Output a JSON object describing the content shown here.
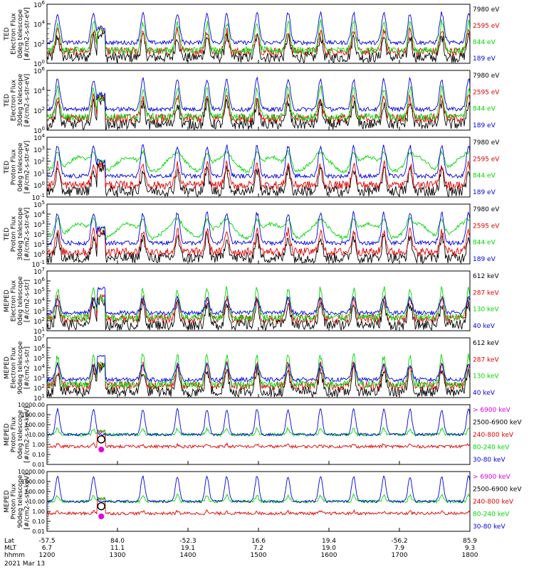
{
  "colors": {
    "black": "#000000",
    "red": "#e00000",
    "green": "#00d800",
    "blue": "#0000e0",
    "magenta": "#e000e0"
  },
  "chart_data": [
    {
      "type": "line",
      "ylabel": [
        "TED",
        "Electron Flux",
        "0deg telescope",
        "[#/cm2-s-str-eV]"
      ],
      "yscale": "log",
      "ylim": [
        1,
        1000000
      ],
      "yticks": [
        "10^0",
        "10^2",
        "10^4",
        "10^6"
      ],
      "legend": [
        {
          "label": "7980 eV",
          "color": "#000000"
        },
        {
          "label": "2595 eV",
          "color": "#e00000"
        },
        {
          "label": "844 eV",
          "color": "#00d800"
        },
        {
          "label": "189 eV",
          "color": "#0000e0"
        }
      ]
    },
    {
      "type": "line",
      "ylabel": [
        "TED",
        "Electron Flux",
        "30deg telescope",
        "[#/cm2-s-str-eV]"
      ],
      "yscale": "log",
      "ylim": [
        1,
        1000000
      ],
      "yticks": [
        "10^0",
        "10^2",
        "10^4",
        "10^6"
      ],
      "legend": [
        {
          "label": "7980 eV",
          "color": "#000000"
        },
        {
          "label": "2595 eV",
          "color": "#e00000"
        },
        {
          "label": "844 eV",
          "color": "#00d800"
        },
        {
          "label": "189 eV",
          "color": "#0000e0"
        }
      ]
    },
    {
      "type": "line",
      "ylabel": [
        "TED",
        "Proton Flux",
        "0deg telescope",
        "[#/cm2-s-str-eV]"
      ],
      "yscale": "log",
      "ylim": [
        0.1,
        10000
      ],
      "yticks": [
        "10^-1",
        "10^0",
        "10^1",
        "10^2",
        "10^3",
        "10^4"
      ],
      "legend": [
        {
          "label": "7980 eV",
          "color": "#000000"
        },
        {
          "label": "2595 eV",
          "color": "#e00000"
        },
        {
          "label": "844 eV",
          "color": "#00d800"
        },
        {
          "label": "189 eV",
          "color": "#0000e0"
        }
      ]
    },
    {
      "type": "line",
      "ylabel": [
        "TED",
        "Proton Flux",
        "30deg telescope",
        "[#/cm2-s-str-eV]"
      ],
      "yscale": "log",
      "ylim": [
        0.1,
        100000
      ],
      "yticks": [
        "10^-1",
        "10^0",
        "10^1",
        "10^2",
        "10^3",
        "10^4",
        "10^5"
      ],
      "legend": [
        {
          "label": "7980 eV",
          "color": "#000000"
        },
        {
          "label": "2595 eV",
          "color": "#e00000"
        },
        {
          "label": "844 eV",
          "color": "#00d800"
        },
        {
          "label": "189 eV",
          "color": "#0000e0"
        }
      ]
    },
    {
      "type": "line",
      "ylabel": [
        "MEPED",
        "Electron Flux",
        "0deg telescope",
        "[#/cm2-s-str]"
      ],
      "yscale": "log",
      "ylim": [
        10,
        10000000
      ],
      "yticks": [
        "10^1",
        "10^2",
        "10^3",
        "10^4",
        "10^5",
        "10^6",
        "10^7"
      ],
      "legend": [
        {
          "label": "612 keV",
          "color": "#000000"
        },
        {
          "label": "287 keV",
          "color": "#e00000"
        },
        {
          "label": "130 keV",
          "color": "#00d800"
        },
        {
          "label": "40 keV",
          "color": "#0000e0"
        }
      ]
    },
    {
      "type": "line",
      "ylabel": [
        "MEPED",
        "Electron Flux",
        "90deg telescope",
        "[#/cm2-s-str]"
      ],
      "yscale": "log",
      "ylim": [
        10,
        10000000
      ],
      "yticks": [
        "10^1",
        "10^2",
        "10^3",
        "10^4",
        "10^5",
        "10^6",
        "10^7"
      ],
      "legend": [
        {
          "label": "612 keV",
          "color": "#000000"
        },
        {
          "label": "287 keV",
          "color": "#e00000"
        },
        {
          "label": "130 keV",
          "color": "#00d800"
        },
        {
          "label": "40 keV",
          "color": "#0000e0"
        }
      ]
    },
    {
      "type": "line",
      "ylabel": [
        "MEPED",
        "Proton Flux",
        "0deg telescope",
        "[#/cm2-s-str-keV]"
      ],
      "yscale": "log",
      "ylim": [
        0.01,
        10000
      ],
      "yticks": [
        "0.01",
        "0.10",
        "1.00",
        "10.00",
        "100.00",
        "1000.00",
        "10000.00"
      ],
      "legend": [
        {
          "label": "> 6900 keV",
          "color": "#e000e0"
        },
        {
          "label": "2500-6900 keV",
          "color": "#000000"
        },
        {
          "label": "240-800 keV",
          "color": "#e00000"
        },
        {
          "label": "80-240 keV",
          "color": "#00d800"
        },
        {
          "label": "30-80 keV",
          "color": "#0000e0"
        }
      ]
    },
    {
      "type": "line",
      "ylabel": [
        "MEPED",
        "Proton Flux",
        "90deg telescope",
        "[#/cm2-s-str-keV]"
      ],
      "yscale": "log",
      "ylim": [
        0.01,
        10000
      ],
      "yticks": [
        "0.01",
        "0.10",
        "1.00",
        "10.00",
        "100.00",
        "1000.00",
        "10000.00"
      ],
      "legend": [
        {
          "label": "> 6900 keV",
          "color": "#e000e0"
        },
        {
          "label": "2500-6900 keV",
          "color": "#000000"
        },
        {
          "label": "240-800 keV",
          "color": "#e00000"
        },
        {
          "label": "80-240 keV",
          "color": "#00d800"
        },
        {
          "label": "30-80 keV",
          "color": "#0000e0"
        }
      ]
    }
  ],
  "x_axis": {
    "xlim": [
      "1200",
      "1800"
    ],
    "row_labels": [
      "Lat",
      "MLT",
      "hhmm"
    ],
    "date": "2021 Mar 13",
    "ticks": [
      {
        "lat": "-57.5",
        "mlt": "6.7",
        "hhmm": "1200"
      },
      {
        "lat": "84.0",
        "mlt": "11.1",
        "hhmm": "1300"
      },
      {
        "lat": "-52.3",
        "mlt": "19.1",
        "hhmm": "1400"
      },
      {
        "lat": "16.6",
        "mlt": "7.2",
        "hhmm": "1500"
      },
      {
        "lat": "19.4",
        "mlt": "19.0",
        "hhmm": "1600"
      },
      {
        "lat": "-56.2",
        "mlt": "7.9",
        "hhmm": "1700"
      },
      {
        "lat": "85.9",
        "mlt": "9.3",
        "hhmm": "1800"
      }
    ]
  }
}
